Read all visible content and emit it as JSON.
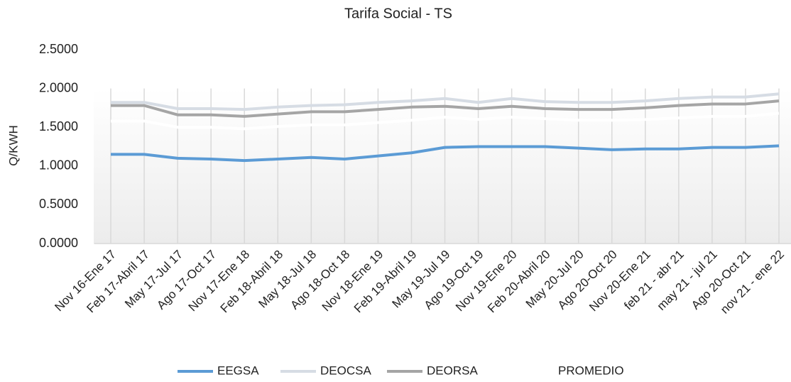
{
  "chart_data": {
    "type": "line",
    "title": "Tarifa Social - TS",
    "y_label": "Q/KWH",
    "categories": [
      "Nov 16-Ene 17",
      "Feb 17-Abril 17",
      "May 17-Jul 17",
      "Ago 17-Oct 17",
      "Nov 17-Ene 18",
      "Feb 18-Abril 18",
      "May 18-Jul 18",
      "Ago 18-Oct 18",
      "Nov 18-Ene 19",
      "Feb 19-Abril 19",
      "May 19-Jul 19",
      "Ago 19-Oct 19",
      "Nov 19-Ene 20",
      "Feb 20-Abril 20",
      "May 20-Jul 20",
      "Ago 20-Oct 20",
      "Nov 20-Ene 21",
      "feb 21 - abr 21",
      "may 21 - jul 21",
      "Ago 20-Oct 21",
      "nov 21 - ene 22"
    ],
    "series": [
      {
        "name": "EEGSA",
        "color": "#5b9bd5",
        "values": [
          1.15,
          1.15,
          1.1,
          1.09,
          1.07,
          1.09,
          1.11,
          1.09,
          1.13,
          1.17,
          1.24,
          1.25,
          1.25,
          1.25,
          1.23,
          1.21,
          1.22,
          1.22,
          1.24,
          1.24,
          1.26
        ]
      },
      {
        "name": "DEOCSA",
        "color": "#d6dce4",
        "values": [
          1.82,
          1.82,
          1.74,
          1.74,
          1.73,
          1.76,
          1.78,
          1.79,
          1.82,
          1.84,
          1.87,
          1.82,
          1.87,
          1.83,
          1.82,
          1.82,
          1.84,
          1.87,
          1.89,
          1.89,
          1.93
        ]
      },
      {
        "name": "DEORSA",
        "color": "#a5a5a5",
        "values": [
          1.78,
          1.78,
          1.66,
          1.66,
          1.64,
          1.67,
          1.7,
          1.7,
          1.73,
          1.76,
          1.77,
          1.74,
          1.77,
          1.74,
          1.73,
          1.73,
          1.75,
          1.78,
          1.8,
          1.8,
          1.84
        ]
      },
      {
        "name": "PROMEDIO",
        "color": "#ffffff",
        "values": [
          1.58,
          1.58,
          1.5,
          1.5,
          1.48,
          1.51,
          1.53,
          1.53,
          1.56,
          1.59,
          1.63,
          1.6,
          1.63,
          1.61,
          1.59,
          1.59,
          1.6,
          1.62,
          1.64,
          1.64,
          1.68
        ]
      }
    ],
    "ylim": [
      0,
      2.5
    ],
    "yticks": [
      {
        "value": 0,
        "label": "0.0000"
      },
      {
        "value": 0.5,
        "label": "0.5000"
      },
      {
        "value": 1,
        "label": "1.0000"
      },
      {
        "value": 1.5,
        "label": "1.5000"
      },
      {
        "value": 2,
        "label": "2.0000"
      },
      {
        "value": 2.5,
        "label": "2.5000"
      }
    ],
    "legend": "bottom"
  }
}
